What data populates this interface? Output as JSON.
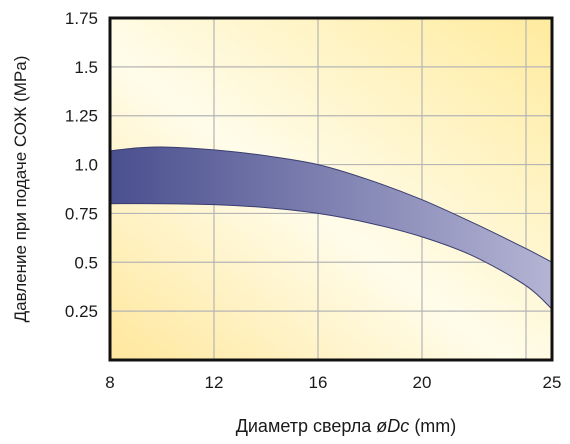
{
  "chart_data": {
    "type": "area",
    "title": "",
    "xlabel": "Диаметр сверла",
    "xlabel_symbol": "øDc",
    "xlabel_unit": "(mm)",
    "ylabel": "Давление при подаче СОЖ (MPa)",
    "x_ticks": [
      {
        "value": 8,
        "label": "8"
      },
      {
        "value": 12,
        "label": "12"
      },
      {
        "value": 16,
        "label": "16"
      },
      {
        "value": 20,
        "label": "20"
      },
      {
        "value": 25,
        "label": "25"
      }
    ],
    "y_ticks": [
      {
        "value": 0.25,
        "label": "0.25"
      },
      {
        "value": 0.5,
        "label": "0.5"
      },
      {
        "value": 0.75,
        "label": "0.75"
      },
      {
        "value": 1.0,
        "label": "1.0"
      },
      {
        "value": 1.25,
        "label": "1.25"
      },
      {
        "value": 1.5,
        "label": "1.5"
      },
      {
        "value": 1.75,
        "label": "1.75"
      }
    ],
    "x_grid": [
      8,
      12,
      16,
      20,
      24
    ],
    "xlim": [
      8,
      25
    ],
    "ylim": [
      0,
      1.75
    ],
    "grid": true,
    "band": {
      "upper": [
        {
          "x": 8,
          "y": 1.07
        },
        {
          "x": 9,
          "y": 1.085
        },
        {
          "x": 10,
          "y": 1.09
        },
        {
          "x": 12,
          "y": 1.075
        },
        {
          "x": 14,
          "y": 1.045
        },
        {
          "x": 16,
          "y": 1.0
        },
        {
          "x": 18,
          "y": 0.92
        },
        {
          "x": 20,
          "y": 0.82
        },
        {
          "x": 22,
          "y": 0.7
        },
        {
          "x": 24,
          "y": 0.57
        },
        {
          "x": 25,
          "y": 0.5
        }
      ],
      "lower": [
        {
          "x": 8,
          "y": 0.8
        },
        {
          "x": 10,
          "y": 0.8
        },
        {
          "x": 12,
          "y": 0.795
        },
        {
          "x": 14,
          "y": 0.78
        },
        {
          "x": 16,
          "y": 0.75
        },
        {
          "x": 18,
          "y": 0.7
        },
        {
          "x": 20,
          "y": 0.63
        },
        {
          "x": 22,
          "y": 0.53
        },
        {
          "x": 24,
          "y": 0.38
        },
        {
          "x": 25,
          "y": 0.26
        }
      ]
    },
    "colors": {
      "band_start": "#4a4f8e",
      "band_end": "#b4b4d4",
      "band_edge": "#3a3d70",
      "grid": "#b5b5b5",
      "frame": "#111111",
      "bg_light": "#fffde8",
      "bg_warm": "#ffe9a0"
    }
  }
}
